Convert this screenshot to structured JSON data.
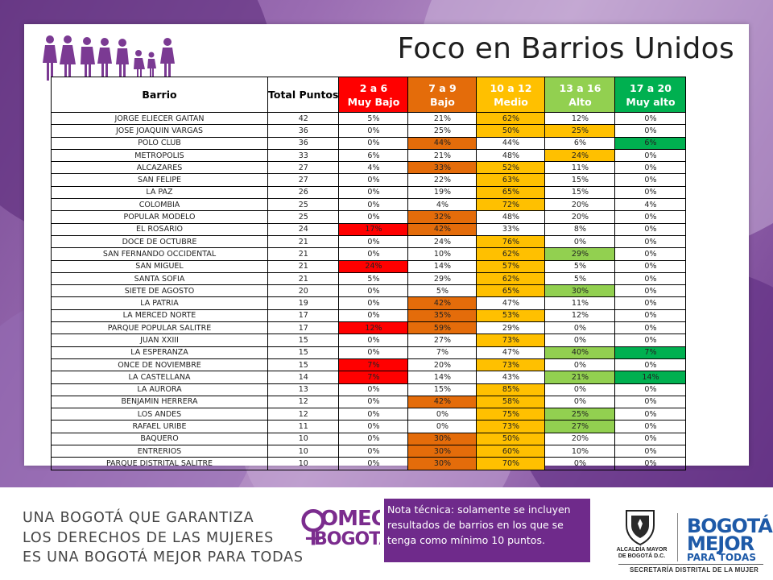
{
  "title": "Foco en Barrios Unidos",
  "header": {
    "barrio": "Barrio",
    "total": "Total Puntos",
    "bands": [
      {
        "range": "2 a 6",
        "label": "Muy Bajo"
      },
      {
        "range": "7 a 9",
        "label": "Bajo"
      },
      {
        "range": "10 a 12",
        "label": "Medio"
      },
      {
        "range": "13 a 16",
        "label": "Alto"
      },
      {
        "range": "17 a 20",
        "label": "Muy alto"
      }
    ]
  },
  "colors": {
    "muy_bajo": "#ff0000",
    "bajo": "#e46c0a",
    "medio": "#ffc000",
    "alto": "#92d050",
    "muy_alto": "#00b050",
    "brand_purple": "#6f2a8b"
  },
  "rows": [
    {
      "barrio": "JORGE ELIECER GAITAN",
      "total": "42",
      "v": [
        "5%",
        "21%",
        "62%",
        "12%",
        "0%"
      ],
      "h": [
        "",
        "",
        "yel",
        "",
        ""
      ]
    },
    {
      "barrio": "JOSE JOAQUIN VARGAS",
      "total": "36",
      "v": [
        "0%",
        "25%",
        "50%",
        "25%",
        "0%"
      ],
      "h": [
        "",
        "",
        "yel",
        "yel",
        ""
      ]
    },
    {
      "barrio": "POLO CLUB",
      "total": "36",
      "v": [
        "0%",
        "44%",
        "44%",
        "6%",
        "6%"
      ],
      "h": [
        "",
        "ora",
        "",
        "",
        "dgr"
      ]
    },
    {
      "barrio": "METROPOLIS",
      "total": "33",
      "v": [
        "6%",
        "21%",
        "48%",
        "24%",
        "0%"
      ],
      "h": [
        "",
        "",
        "",
        "yel",
        ""
      ]
    },
    {
      "barrio": "ALCAZARES",
      "total": "27",
      "v": [
        "4%",
        "33%",
        "52%",
        "11%",
        "0%"
      ],
      "h": [
        "",
        "ora",
        "yel",
        "",
        ""
      ]
    },
    {
      "barrio": "SAN FELIPE",
      "total": "27",
      "v": [
        "0%",
        "22%",
        "63%",
        "15%",
        "0%"
      ],
      "h": [
        "",
        "",
        "yel",
        "",
        ""
      ]
    },
    {
      "barrio": "LA PAZ",
      "total": "26",
      "v": [
        "0%",
        "19%",
        "65%",
        "15%",
        "0%"
      ],
      "h": [
        "",
        "",
        "yel",
        "",
        ""
      ]
    },
    {
      "barrio": "COLOMBIA",
      "total": "25",
      "v": [
        "0%",
        "4%",
        "72%",
        "20%",
        "4%"
      ],
      "h": [
        "",
        "",
        "yel",
        "",
        ""
      ]
    },
    {
      "barrio": "POPULAR MODELO",
      "total": "25",
      "v": [
        "0%",
        "32%",
        "48%",
        "20%",
        "0%"
      ],
      "h": [
        "",
        "ora",
        "",
        "",
        ""
      ]
    },
    {
      "barrio": "EL ROSARIO",
      "total": "24",
      "v": [
        "17%",
        "42%",
        "33%",
        "8%",
        "0%"
      ],
      "h": [
        "red",
        "ora",
        "",
        "",
        ""
      ]
    },
    {
      "barrio": "DOCE DE OCTUBRE",
      "total": "21",
      "v": [
        "0%",
        "24%",
        "76%",
        "0%",
        "0%"
      ],
      "h": [
        "",
        "",
        "yel",
        "",
        ""
      ]
    },
    {
      "barrio": "SAN FERNANDO OCCIDENTAL",
      "total": "21",
      "v": [
        "0%",
        "10%",
        "62%",
        "29%",
        "0%"
      ],
      "h": [
        "",
        "",
        "yel",
        "lgr",
        ""
      ]
    },
    {
      "barrio": "SAN MIGUEL",
      "total": "21",
      "v": [
        "24%",
        "14%",
        "57%",
        "5%",
        "0%"
      ],
      "h": [
        "red",
        "",
        "yel",
        "",
        ""
      ]
    },
    {
      "barrio": "SANTA SOFIA",
      "total": "21",
      "v": [
        "5%",
        "29%",
        "62%",
        "5%",
        "0%"
      ],
      "h": [
        "",
        "",
        "yel",
        "",
        ""
      ]
    },
    {
      "barrio": "SIETE DE AGOSTO",
      "total": "20",
      "v": [
        "0%",
        "5%",
        "65%",
        "30%",
        "0%"
      ],
      "h": [
        "",
        "",
        "yel",
        "lgr",
        ""
      ]
    },
    {
      "barrio": "LA PATRIA",
      "total": "19",
      "v": [
        "0%",
        "42%",
        "47%",
        "11%",
        "0%"
      ],
      "h": [
        "",
        "ora",
        "",
        "",
        ""
      ]
    },
    {
      "barrio": "LA MERCED NORTE",
      "total": "17",
      "v": [
        "0%",
        "35%",
        "53%",
        "12%",
        "0%"
      ],
      "h": [
        "",
        "ora",
        "yel",
        "",
        ""
      ]
    },
    {
      "barrio": "PARQUE POPULAR SALITRE",
      "total": "17",
      "v": [
        "12%",
        "59%",
        "29%",
        "0%",
        "0%"
      ],
      "h": [
        "red",
        "ora",
        "",
        "",
        ""
      ]
    },
    {
      "barrio": "JUAN XXIII",
      "total": "15",
      "v": [
        "0%",
        "27%",
        "73%",
        "0%",
        "0%"
      ],
      "h": [
        "",
        "",
        "yel",
        "",
        ""
      ]
    },
    {
      "barrio": "LA ESPERANZA",
      "total": "15",
      "v": [
        "0%",
        "7%",
        "47%",
        "40%",
        "7%"
      ],
      "h": [
        "",
        "",
        "",
        "lgr",
        "dgr"
      ]
    },
    {
      "barrio": "ONCE DE NOVIEMBRE",
      "total": "15",
      "v": [
        "7%",
        "20%",
        "73%",
        "0%",
        "0%"
      ],
      "h": [
        "red",
        "",
        "yel",
        "",
        ""
      ]
    },
    {
      "barrio": "LA CASTELLANA",
      "total": "14",
      "v": [
        "7%",
        "14%",
        "43%",
        "21%",
        "14%"
      ],
      "h": [
        "red",
        "",
        "",
        "lgr",
        "dgr"
      ]
    },
    {
      "barrio": "LA AURORA",
      "total": "13",
      "v": [
        "0%",
        "15%",
        "85%",
        "0%",
        "0%"
      ],
      "h": [
        "",
        "",
        "yel",
        "",
        ""
      ]
    },
    {
      "barrio": "BENJAMIN HERRERA",
      "total": "12",
      "v": [
        "0%",
        "42%",
        "58%",
        "0%",
        "0%"
      ],
      "h": [
        "",
        "ora",
        "yel",
        "",
        ""
      ]
    },
    {
      "barrio": "LOS ANDES",
      "total": "12",
      "v": [
        "0%",
        "0%",
        "75%",
        "25%",
        "0%"
      ],
      "h": [
        "",
        "",
        "yel",
        "lgr",
        ""
      ]
    },
    {
      "barrio": "RAFAEL URIBE",
      "total": "11",
      "v": [
        "0%",
        "0%",
        "73%",
        "27%",
        "0%"
      ],
      "h": [
        "",
        "",
        "yel",
        "lgr",
        ""
      ]
    },
    {
      "barrio": "BAQUERO",
      "total": "10",
      "v": [
        "0%",
        "30%",
        "50%",
        "20%",
        "0%"
      ],
      "h": [
        "",
        "ora",
        "yel",
        "",
        ""
      ]
    },
    {
      "barrio": "ENTRERIOS",
      "total": "10",
      "v": [
        "0%",
        "30%",
        "60%",
        "10%",
        "0%"
      ],
      "h": [
        "",
        "ora",
        "yel",
        "",
        ""
      ]
    },
    {
      "barrio": "PARQUE DISTRITAL SALITRE",
      "total": "10",
      "v": [
        "0%",
        "30%",
        "70%",
        "0%",
        "0%"
      ],
      "h": [
        "",
        "ora",
        "yel",
        "",
        ""
      ]
    }
  ],
  "footer": {
    "slogan_lines": [
      "UNA BOGOTÁ QUE GARANTIZA",
      "LOS DERECHOS DE LAS MUJERES",
      "ES UNA BOGOTÁ MEJOR PARA TODAS"
    ],
    "omeg_top": "OMEG",
    "omeg_bottom": "BOGOTÁ",
    "note": "Nota técnica: solamente se incluyen resultados de barrios en los que se tenga como mínimo 10 puntos.",
    "alcaldia_lines": [
      "ALCALDÍA MAYOR",
      "DE BOGOTÁ D.C."
    ],
    "bogota_line1": "BOGOTÁ",
    "bogota_line2": "MEJOR",
    "bogota_line3": "PARA TODAS",
    "secretaria": "SECRETARÍA DISTRITAL DE LA MUJER"
  }
}
